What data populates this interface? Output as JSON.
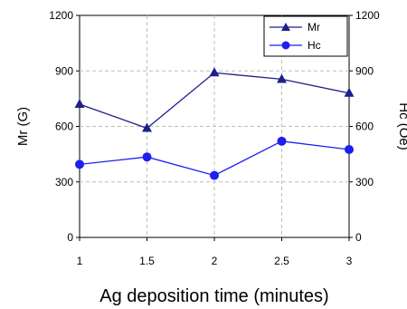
{
  "chart_data": {
    "type": "line",
    "title": "",
    "xlabel": "Ag deposition time (minutes)",
    "ylabel_left": "Mr (G)",
    "ylabel_right": "Hc (Oe)",
    "x": [
      1,
      1.5,
      2,
      2.5,
      3
    ],
    "x_ticks": [
      "1",
      "1.5",
      "2",
      "2.5",
      "3"
    ],
    "ylim": [
      0,
      1200
    ],
    "y_ticks": [
      "0",
      "300",
      "600",
      "900",
      "1200"
    ],
    "y2lim": [
      0,
      1200
    ],
    "y2_ticks": [
      "0",
      "300",
      "600",
      "900",
      "1200"
    ],
    "grid": "dashed",
    "legend_position": "top-right",
    "series": [
      {
        "name": "Mr",
        "axis": "left",
        "marker": "triangle",
        "color": "#1f1f8c",
        "values": [
          720,
          590,
          890,
          855,
          780
        ]
      },
      {
        "name": "Hc",
        "axis": "right",
        "marker": "circle",
        "color": "#1e1ef0",
        "values": [
          395,
          435,
          335,
          520,
          475
        ]
      }
    ]
  }
}
